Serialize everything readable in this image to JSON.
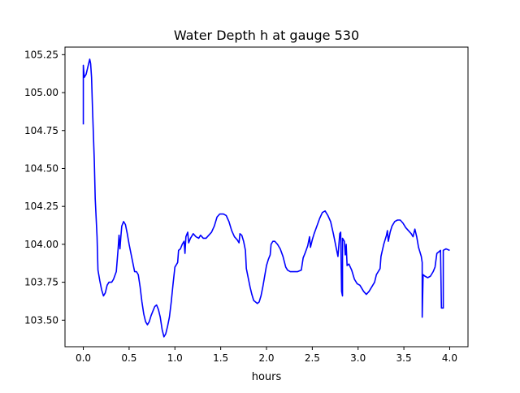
{
  "chart_data": {
    "type": "line",
    "title": "Water Depth h at gauge 530",
    "xlabel": "hours",
    "ylabel": "",
    "xlim": [
      -0.2,
      4.2
    ],
    "ylim": [
      103.325,
      105.3
    ],
    "grid": false,
    "x_ticks": [
      0.0,
      0.5,
      1.0,
      1.5,
      2.0,
      2.5,
      3.0,
      3.5,
      4.0
    ],
    "x_tick_labels": [
      "0.0",
      "0.5",
      "1.0",
      "1.5",
      "2.0",
      "2.5",
      "3.0",
      "3.5",
      "4.0"
    ],
    "y_ticks": [
      103.5,
      103.75,
      104.0,
      104.25,
      104.5,
      104.75,
      105.0,
      105.25
    ],
    "y_tick_labels": [
      "103.50",
      "103.75",
      "104.00",
      "104.25",
      "104.50",
      "104.75",
      "105.00",
      "105.25"
    ],
    "series": [
      {
        "color": "#0000ff",
        "points": [
          [
            0.0,
            104.79
          ],
          [
            0.0,
            105.18
          ],
          [
            0.01,
            105.1
          ],
          [
            0.03,
            105.12
          ],
          [
            0.05,
            105.17
          ],
          [
            0.07,
            105.22
          ],
          [
            0.08,
            105.19
          ],
          [
            0.09,
            105.1
          ],
          [
            0.1,
            104.9
          ],
          [
            0.12,
            104.55
          ],
          [
            0.13,
            104.3
          ],
          [
            0.15,
            104.05
          ],
          [
            0.16,
            103.83
          ],
          [
            0.18,
            103.76
          ],
          [
            0.2,
            103.7
          ],
          [
            0.22,
            103.66
          ],
          [
            0.24,
            103.68
          ],
          [
            0.26,
            103.73
          ],
          [
            0.28,
            103.75
          ],
          [
            0.31,
            103.75
          ],
          [
            0.33,
            103.77
          ],
          [
            0.36,
            103.82
          ],
          [
            0.38,
            103.97
          ],
          [
            0.39,
            104.06
          ],
          [
            0.4,
            103.97
          ],
          [
            0.41,
            104.05
          ],
          [
            0.42,
            104.12
          ],
          [
            0.44,
            104.15
          ],
          [
            0.46,
            104.13
          ],
          [
            0.48,
            104.07
          ],
          [
            0.5,
            104.0
          ],
          [
            0.52,
            103.94
          ],
          [
            0.54,
            103.88
          ],
          [
            0.56,
            103.82
          ],
          [
            0.58,
            103.82
          ],
          [
            0.6,
            103.8
          ],
          [
            0.62,
            103.72
          ],
          [
            0.64,
            103.62
          ],
          [
            0.66,
            103.54
          ],
          [
            0.68,
            103.49
          ],
          [
            0.7,
            103.47
          ],
          [
            0.72,
            103.49
          ],
          [
            0.74,
            103.53
          ],
          [
            0.76,
            103.56
          ],
          [
            0.78,
            103.59
          ],
          [
            0.8,
            103.6
          ],
          [
            0.82,
            103.57
          ],
          [
            0.84,
            103.52
          ],
          [
            0.86,
            103.44
          ],
          [
            0.88,
            103.39
          ],
          [
            0.9,
            103.41
          ],
          [
            0.92,
            103.46
          ],
          [
            0.94,
            103.52
          ],
          [
            0.96,
            103.62
          ],
          [
            0.98,
            103.74
          ],
          [
            1.0,
            103.85
          ],
          [
            1.02,
            103.87
          ],
          [
            1.03,
            103.88
          ],
          [
            1.04,
            103.96
          ],
          [
            1.06,
            103.97
          ],
          [
            1.08,
            104.0
          ],
          [
            1.1,
            104.02
          ],
          [
            1.11,
            103.94
          ],
          [
            1.12,
            104.05
          ],
          [
            1.14,
            104.08
          ],
          [
            1.15,
            104.01
          ],
          [
            1.17,
            104.04
          ],
          [
            1.2,
            104.07
          ],
          [
            1.23,
            104.05
          ],
          [
            1.26,
            104.04
          ],
          [
            1.28,
            104.06
          ],
          [
            1.31,
            104.04
          ],
          [
            1.34,
            104.04
          ],
          [
            1.37,
            104.06
          ],
          [
            1.4,
            104.08
          ],
          [
            1.43,
            104.12
          ],
          [
            1.46,
            104.18
          ],
          [
            1.49,
            104.2
          ],
          [
            1.53,
            104.2
          ],
          [
            1.56,
            104.19
          ],
          [
            1.59,
            104.15
          ],
          [
            1.62,
            104.09
          ],
          [
            1.65,
            104.05
          ],
          [
            1.68,
            104.03
          ],
          [
            1.7,
            104.01
          ],
          [
            1.71,
            104.07
          ],
          [
            1.73,
            104.06
          ],
          [
            1.75,
            104.02
          ],
          [
            1.77,
            103.96
          ],
          [
            1.78,
            103.84
          ],
          [
            1.8,
            103.78
          ],
          [
            1.82,
            103.72
          ],
          [
            1.84,
            103.67
          ],
          [
            1.86,
            103.63
          ],
          [
            1.88,
            103.62
          ],
          [
            1.9,
            103.61
          ],
          [
            1.92,
            103.62
          ],
          [
            1.94,
            103.66
          ],
          [
            1.96,
            103.72
          ],
          [
            1.98,
            103.79
          ],
          [
            2.0,
            103.86
          ],
          [
            2.02,
            103.9
          ],
          [
            2.04,
            103.93
          ],
          [
            2.05,
            104.0
          ],
          [
            2.07,
            104.02
          ],
          [
            2.09,
            104.02
          ],
          [
            2.12,
            104.0
          ],
          [
            2.15,
            103.97
          ],
          [
            2.18,
            103.92
          ],
          [
            2.21,
            103.85
          ],
          [
            2.23,
            103.83
          ],
          [
            2.26,
            103.82
          ],
          [
            2.3,
            103.82
          ],
          [
            2.34,
            103.82
          ],
          [
            2.38,
            103.83
          ],
          [
            2.4,
            103.91
          ],
          [
            2.42,
            103.94
          ],
          [
            2.45,
            103.99
          ],
          [
            2.47,
            104.05
          ],
          [
            2.48,
            103.98
          ],
          [
            2.5,
            104.03
          ],
          [
            2.52,
            104.07
          ],
          [
            2.55,
            104.12
          ],
          [
            2.58,
            104.17
          ],
          [
            2.61,
            104.21
          ],
          [
            2.64,
            104.22
          ],
          [
            2.67,
            104.19
          ],
          [
            2.7,
            104.15
          ],
          [
            2.73,
            104.07
          ],
          [
            2.76,
            103.98
          ],
          [
            2.78,
            103.92
          ],
          [
            2.8,
            104.07
          ],
          [
            2.81,
            104.08
          ],
          [
            2.82,
            103.69
          ],
          [
            2.83,
            103.66
          ],
          [
            2.83,
            104.04
          ],
          [
            2.85,
            104.02
          ],
          [
            2.86,
            103.93
          ],
          [
            2.87,
            104.0
          ],
          [
            2.88,
            103.86
          ],
          [
            2.9,
            103.87
          ],
          [
            2.93,
            103.83
          ],
          [
            2.96,
            103.77
          ],
          [
            2.99,
            103.74
          ],
          [
            3.02,
            103.73
          ],
          [
            3.06,
            103.69
          ],
          [
            3.09,
            103.67
          ],
          [
            3.12,
            103.69
          ],
          [
            3.15,
            103.72
          ],
          [
            3.18,
            103.75
          ],
          [
            3.2,
            103.8
          ],
          [
            3.24,
            103.84
          ],
          [
            3.25,
            103.92
          ],
          [
            3.28,
            104.0
          ],
          [
            3.31,
            104.06
          ],
          [
            3.32,
            104.09
          ],
          [
            3.33,
            104.02
          ],
          [
            3.35,
            104.08
          ],
          [
            3.37,
            104.12
          ],
          [
            3.4,
            104.15
          ],
          [
            3.43,
            104.16
          ],
          [
            3.46,
            104.16
          ],
          [
            3.49,
            104.14
          ],
          [
            3.52,
            104.11
          ],
          [
            3.55,
            104.09
          ],
          [
            3.58,
            104.07
          ],
          [
            3.6,
            104.05
          ],
          [
            3.62,
            104.1
          ],
          [
            3.64,
            104.05
          ],
          [
            3.66,
            103.98
          ],
          [
            3.69,
            103.92
          ],
          [
            3.7,
            103.88
          ],
          [
            3.7,
            103.52
          ],
          [
            3.71,
            103.8
          ],
          [
            3.73,
            103.79
          ],
          [
            3.76,
            103.78
          ],
          [
            3.79,
            103.79
          ],
          [
            3.82,
            103.82
          ],
          [
            3.84,
            103.85
          ],
          [
            3.86,
            103.94
          ],
          [
            3.88,
            103.95
          ],
          [
            3.9,
            103.96
          ],
          [
            3.91,
            103.58
          ],
          [
            3.93,
            103.58
          ],
          [
            3.93,
            103.96
          ],
          [
            3.96,
            103.97
          ],
          [
            4.0,
            103.96
          ]
        ]
      }
    ]
  }
}
